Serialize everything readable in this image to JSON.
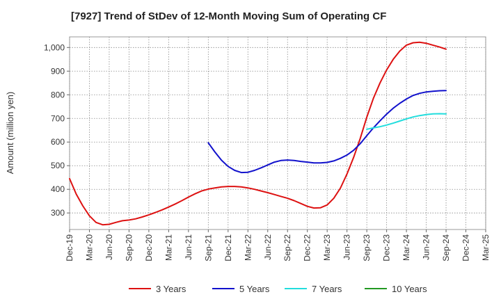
{
  "chart_data": {
    "type": "line",
    "title": "[7927]  Trend of StDev of 12-Month Moving Sum of Operating CF",
    "ylabel": "Amount (million yen)",
    "xlabel": "",
    "ylim": [
      230,
      1045
    ],
    "yticks": [
      300,
      400,
      500,
      600,
      700,
      800,
      900,
      1000
    ],
    "ytick_labels": [
      "300",
      "400",
      "500",
      "600",
      "700",
      "800",
      "900",
      "1,000"
    ],
    "x_ticks": [
      "Dec-19",
      "Mar-20",
      "Jun-20",
      "Sep-20",
      "Dec-20",
      "Mar-21",
      "Jun-21",
      "Sep-21",
      "Dec-21",
      "Mar-22",
      "Jun-22",
      "Sep-22",
      "Dec-22",
      "Mar-23",
      "Jun-23",
      "Sep-23",
      "Dec-23",
      "Mar-24",
      "Jun-24",
      "Sep-24",
      "Dec-24",
      "Mar-25"
    ],
    "grid": true,
    "legend_position": "bottom",
    "series": [
      {
        "name": "3 Years",
        "color": "#dd1111",
        "x": [
          "Dec-19",
          "Jan-20",
          "Feb-20",
          "Mar-20",
          "Apr-20",
          "May-20",
          "Jun-20",
          "Jul-20",
          "Aug-20",
          "Sep-20",
          "Oct-20",
          "Nov-20",
          "Dec-20",
          "Jan-21",
          "Feb-21",
          "Mar-21",
          "Apr-21",
          "May-21",
          "Jun-21",
          "Jul-21",
          "Aug-21",
          "Sep-21",
          "Oct-21",
          "Nov-21",
          "Dec-21",
          "Jan-22",
          "Feb-22",
          "Mar-22",
          "Apr-22",
          "May-22",
          "Jun-22",
          "Jul-22",
          "Aug-22",
          "Sep-22",
          "Oct-22",
          "Nov-22",
          "Dec-22",
          "Jan-23",
          "Feb-23",
          "Mar-23",
          "Apr-23",
          "May-23",
          "Jun-23",
          "Jul-23",
          "Aug-23",
          "Sep-23",
          "Oct-23",
          "Nov-23",
          "Dec-23",
          "Jan-24",
          "Feb-24",
          "Mar-24",
          "Apr-24",
          "May-24",
          "Jun-24",
          "Jul-24",
          "Aug-24",
          "Sep-24"
        ],
        "values": [
          445,
          380,
          330,
          288,
          260,
          250,
          252,
          260,
          267,
          270,
          275,
          283,
          292,
          302,
          313,
          325,
          338,
          352,
          367,
          381,
          393,
          401,
          406,
          410,
          412,
          412,
          410,
          406,
          400,
          393,
          386,
          378,
          370,
          362,
          352,
          340,
          328,
          321,
          322,
          334,
          362,
          405,
          465,
          535,
          615,
          705,
          785,
          850,
          905,
          950,
          985,
          1010,
          1020,
          1022,
          1018,
          1010,
          1002,
          993
        ]
      },
      {
        "name": "5 Years",
        "color": "#1111cc",
        "x": [
          "Sep-21",
          "Oct-21",
          "Nov-21",
          "Dec-21",
          "Jan-22",
          "Feb-22",
          "Mar-22",
          "Apr-22",
          "May-22",
          "Jun-22",
          "Jul-22",
          "Aug-22",
          "Sep-22",
          "Oct-22",
          "Nov-22",
          "Dec-22",
          "Jan-23",
          "Feb-23",
          "Mar-23",
          "Apr-23",
          "May-23",
          "Jun-23",
          "Jul-23",
          "Aug-23",
          "Sep-23",
          "Oct-23",
          "Nov-23",
          "Dec-23",
          "Jan-24",
          "Feb-24",
          "Mar-24",
          "Apr-24",
          "May-24",
          "Jun-24",
          "Jul-24",
          "Aug-24",
          "Sep-24"
        ],
        "values": [
          597,
          558,
          523,
          497,
          480,
          471,
          472,
          480,
          491,
          503,
          515,
          522,
          524,
          522,
          518,
          515,
          512,
          512,
          514,
          520,
          531,
          545,
          565,
          593,
          627,
          660,
          690,
          718,
          743,
          764,
          782,
          797,
          806,
          812,
          815,
          817,
          818
        ]
      },
      {
        "name": "7 Years",
        "color": "#22dddd",
        "x": [
          "Sep-23",
          "Oct-23",
          "Nov-23",
          "Dec-23",
          "Jan-24",
          "Feb-24",
          "Mar-24",
          "Apr-24",
          "May-24",
          "Jun-24",
          "Jul-24",
          "Aug-24",
          "Sep-24"
        ],
        "values": [
          654,
          660,
          665,
          672,
          680,
          689,
          698,
          706,
          712,
          716,
          719,
          720,
          719
        ]
      },
      {
        "name": "10 Years",
        "color": "#229922",
        "x": [],
        "values": []
      }
    ]
  }
}
